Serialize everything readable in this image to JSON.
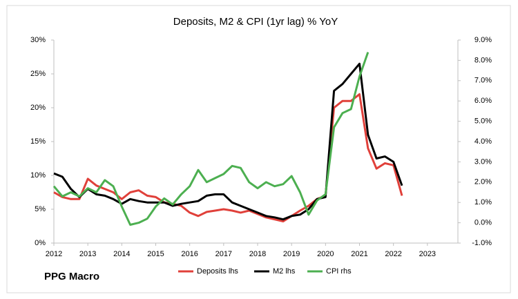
{
  "chart_data": {
    "type": "line",
    "title": "Deposits, M2 & CPI (1yr lag) % YoY",
    "source": "PPG Macro",
    "x": [
      2012,
      2012.25,
      2012.5,
      2012.75,
      2013,
      2013.25,
      2013.5,
      2013.75,
      2014,
      2014.25,
      2014.5,
      2014.75,
      2015,
      2015.25,
      2015.5,
      2015.75,
      2016,
      2016.25,
      2016.5,
      2016.75,
      2017,
      2017.25,
      2017.5,
      2017.75,
      2018,
      2018.25,
      2018.5,
      2018.75,
      2019,
      2019.25,
      2019.5,
      2019.75,
      2020,
      2020.25,
      2020.5,
      2020.75,
      2021,
      2021.25,
      2021.5,
      2021.75,
      2022,
      2022.25
    ],
    "xlim": [
      2012,
      2024
    ],
    "xticks": [
      2012,
      2013,
      2014,
      2015,
      2016,
      2017,
      2018,
      2019,
      2020,
      2021,
      2022,
      2023
    ],
    "ylim": [
      0,
      30
    ],
    "yticks": [
      {
        "value": 0,
        "label": "0%"
      },
      {
        "value": 5,
        "label": "5%"
      },
      {
        "value": 10,
        "label": "10%"
      },
      {
        "value": 15,
        "label": "15%"
      },
      {
        "value": 20,
        "label": "20%"
      },
      {
        "value": 25,
        "label": "25%"
      },
      {
        "value": 30,
        "label": "30%"
      }
    ],
    "y2lim": [
      -1,
      9
    ],
    "y2ticks": [
      {
        "value": -1,
        "label": "-1.0%"
      },
      {
        "value": 0,
        "label": "0.0%"
      },
      {
        "value": 1,
        "label": "1.0%"
      },
      {
        "value": 2,
        "label": "2.0%"
      },
      {
        "value": 3,
        "label": "3.0%"
      },
      {
        "value": 4,
        "label": "4.0%"
      },
      {
        "value": 5,
        "label": "5.0%"
      },
      {
        "value": 6,
        "label": "6.0%"
      },
      {
        "value": 7,
        "label": "7.0%"
      },
      {
        "value": 8,
        "label": "8.0%"
      },
      {
        "value": 9,
        "label": "9.0%"
      }
    ],
    "grid": false,
    "legend": "bottom",
    "series": [
      {
        "name": "Deposits lhs",
        "color": "#e0403a",
        "values": [
          7.5,
          6.8,
          6.5,
          6.5,
          9.5,
          8.5,
          8.0,
          7.5,
          6.5,
          7.5,
          7.8,
          7.0,
          6.8,
          6.0,
          5.8,
          5.5,
          4.5,
          4.0,
          4.6,
          4.8,
          5.0,
          4.8,
          4.5,
          4.8,
          4.3,
          3.8,
          3.5,
          3.2,
          4.0,
          4.8,
          5.5,
          6.5,
          7.0,
          20.0,
          21.0,
          21.0,
          22.0,
          14.0,
          11.0,
          11.8,
          11.5,
          7.0
        ]
      },
      {
        "name": "M2 lhs",
        "color": "#000000",
        "values": [
          10.3,
          9.8,
          8.0,
          6.8,
          8.0,
          7.2,
          7.0,
          6.5,
          5.8,
          6.5,
          6.2,
          6.0,
          6.0,
          6.0,
          5.5,
          5.8,
          6.0,
          6.2,
          7.0,
          7.2,
          7.2,
          6.0,
          5.5,
          5.0,
          4.5,
          4.0,
          3.8,
          3.5,
          4.0,
          4.2,
          5.0,
          6.5,
          6.8,
          22.5,
          23.5,
          25.0,
          26.5,
          16.0,
          12.5,
          12.8,
          12.0,
          8.5
        ]
      },
      {
        "name": "CPI rhs",
        "color": "#4caf50",
        "axis": "y2",
        "values": [
          1.8,
          1.3,
          1.5,
          1.3,
          1.7,
          1.5,
          2.1,
          1.8,
          0.8,
          -0.1,
          0.0,
          0.2,
          0.8,
          1.2,
          0.9,
          1.4,
          1.8,
          2.6,
          2.0,
          2.2,
          2.4,
          2.8,
          2.7,
          2.0,
          1.7,
          2.0,
          1.8,
          1.9,
          2.3,
          1.5,
          0.4,
          1.1,
          1.4,
          4.7,
          5.4,
          5.6,
          7.2,
          8.4,
          null,
          null,
          null,
          null
        ]
      }
    ]
  }
}
